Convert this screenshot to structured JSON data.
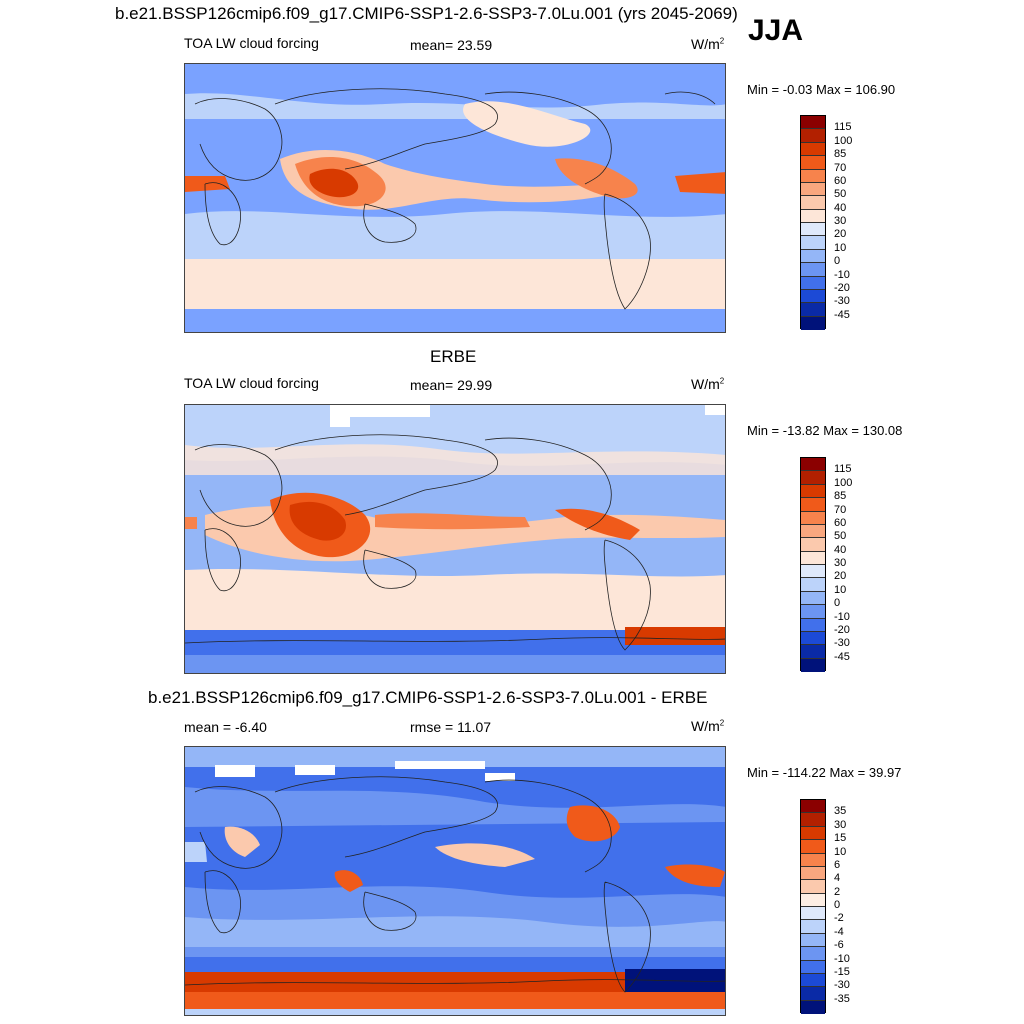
{
  "season": "JJA",
  "panels": [
    {
      "title": "b.e21.BSSP126cmip6.f09_g17.CMIP6-SSP1-2.6-SSP3-7.0Lu.001 (yrs 2045-2069)",
      "variable": "TOA LW cloud forcing",
      "stat1": "mean=  23.59",
      "units_base": "W/m",
      "units_exp": "2",
      "minmax": "Min =  -0.03 Max = 106.90",
      "levels": [
        "115",
        "100",
        "85",
        "70",
        "60",
        "50",
        "40",
        "30",
        "20",
        "10",
        "0",
        "-10",
        "-20",
        "-30",
        "-45"
      ],
      "colors": [
        "#8b0000",
        "#b22000",
        "#d83a00",
        "#f05a1a",
        "#f7834c",
        "#f9a77f",
        "#fbc9ad",
        "#fde6d8",
        "#dfe9fb",
        "#bcd3fa",
        "#94b6f7",
        "#6c95f2",
        "#4170eb",
        "#1c4ad6",
        "#0a2aa6",
        "#00127a"
      ]
    },
    {
      "title": "ERBE",
      "variable": "TOA LW cloud forcing",
      "stat1": "mean=  29.99",
      "units_base": "W/m",
      "units_exp": "2",
      "minmax": "Min = -13.82 Max = 130.08",
      "levels": [
        "115",
        "100",
        "85",
        "70",
        "60",
        "50",
        "40",
        "30",
        "20",
        "10",
        "0",
        "-10",
        "-20",
        "-30",
        "-45"
      ],
      "colors": [
        "#8b0000",
        "#b22000",
        "#d83a00",
        "#f05a1a",
        "#f7834c",
        "#f9a77f",
        "#fbc9ad",
        "#fde6d8",
        "#dfe9fb",
        "#bcd3fa",
        "#94b6f7",
        "#6c95f2",
        "#4170eb",
        "#1c4ad6",
        "#0a2aa6",
        "#00127a"
      ]
    },
    {
      "title": "b.e21.BSSP126cmip6.f09_g17.CMIP6-SSP1-2.6-SSP3-7.0Lu.001 - ERBE",
      "variable": "mean =  -6.40",
      "stat1": "rmse =  11.07",
      "units_base": "W/m",
      "units_exp": "2",
      "minmax": "Min = -114.22 Max =  39.97",
      "levels": [
        "35",
        "30",
        "15",
        "10",
        "6",
        "4",
        "2",
        "0",
        "-2",
        "-4",
        "-6",
        "-10",
        "-15",
        "-30",
        "-35"
      ],
      "colors": [
        "#8b0000",
        "#b22000",
        "#d83a00",
        "#f05a1a",
        "#f7834c",
        "#f9a77f",
        "#fbc9ad",
        "#fdeee4",
        "#dfe9fb",
        "#bcd3fa",
        "#94b6f7",
        "#6c95f2",
        "#4170eb",
        "#1c4ad6",
        "#0a2aa6",
        "#00127a"
      ]
    }
  ]
}
